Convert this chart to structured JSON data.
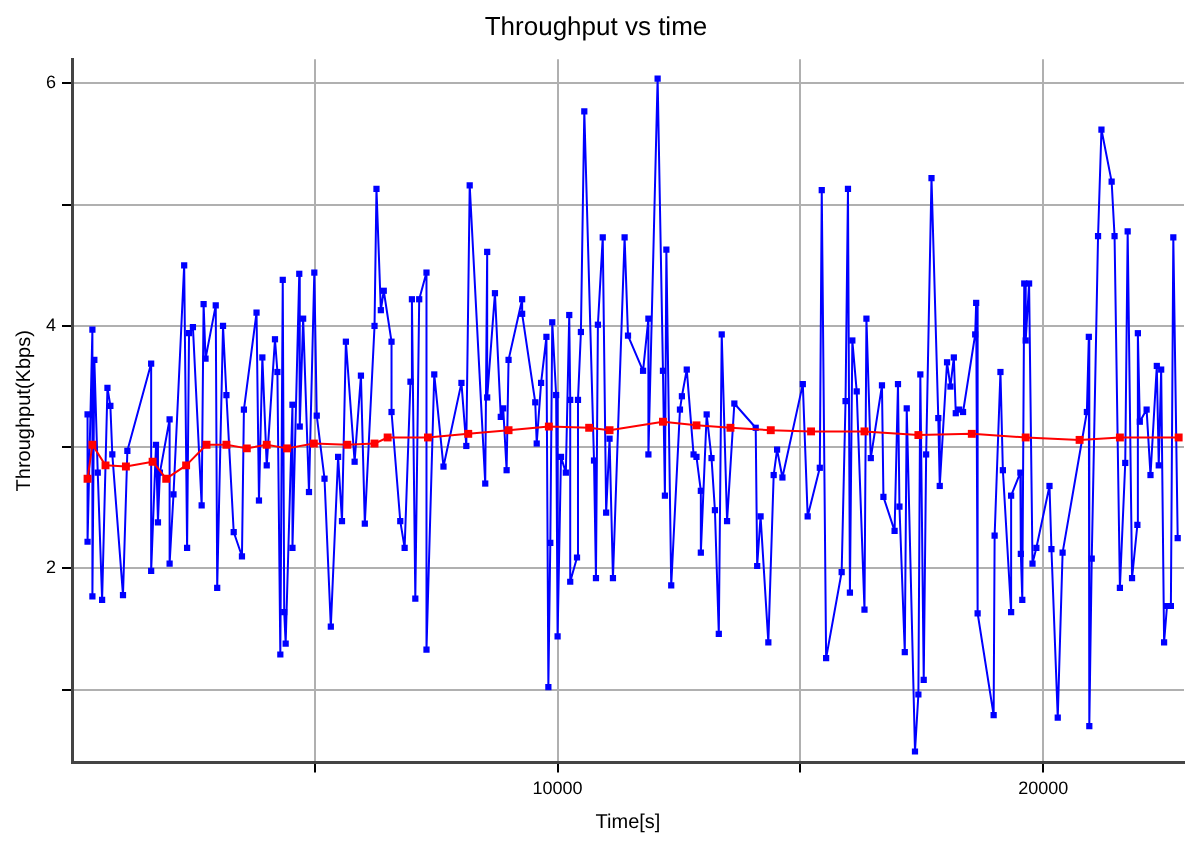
{
  "chart_data": {
    "type": "line",
    "title": "Throughput vs time",
    "xlabel": "Time[s]",
    "ylabel": "Throughput(Kbps)",
    "xlim": [
      0,
      22900
    ],
    "ylim": [
      0.4,
      6.2
    ],
    "xticks": [
      {
        "value": 5000,
        "label": null
      },
      10000,
      {
        "value": 15000,
        "label": null
      },
      20000
    ],
    "yticks": [
      {
        "value": 1,
        "label": null
      },
      2,
      {
        "value": 3,
        "label": null
      },
      4,
      {
        "value": 5,
        "label": null
      },
      6
    ],
    "grid": true,
    "legend": false,
    "marker": "square",
    "line_style": "solid",
    "series": [
      {
        "color": "#0000ff",
        "x": [
          320,
          320,
          420,
          420,
          460,
          530,
          620,
          730,
          790,
          830,
          1050,
          1140,
          1630,
          1630,
          1730,
          1770,
          1810,
          2010,
          2010,
          2090,
          2310,
          2370,
          2410,
          2490,
          2670,
          2710,
          2750,
          2960,
          2990,
          3110,
          3180,
          3330,
          3500,
          3540,
          3800,
          3850,
          3920,
          4010,
          4180,
          4230,
          4290,
          4340,
          4370,
          4400,
          4540,
          4540,
          4680,
          4690,
          4760,
          4880,
          4990,
          5040,
          5200,
          5330,
          5480,
          5560,
          5640,
          5820,
          5950,
          6030,
          6230,
          6270,
          6360,
          6420,
          6580,
          6580,
          6760,
          6850,
          6970,
          7000,
          7070,
          7150,
          7300,
          7300,
          7460,
          7650,
          8020,
          8120,
          8190,
          8510,
          8550,
          8550,
          8710,
          8830,
          8880,
          8950,
          8990,
          9270,
          9270,
          9540,
          9570,
          9660,
          9770,
          9810,
          9850,
          9890,
          9970,
          10000,
          10070,
          10170,
          10240,
          10260,
          10260,
          10400,
          10420,
          10480,
          10550,
          10750,
          10790,
          10830,
          10930,
          11000,
          11070,
          11140,
          11380,
          11450,
          11760,
          11870,
          11870,
          12060,
          12170,
          12210,
          12240,
          12340,
          12520,
          12560,
          12660,
          12800,
          12860,
          12950,
          12950,
          13070,
          13170,
          13240,
          13320,
          13380,
          13490,
          13640,
          14080,
          14110,
          14180,
          14340,
          14450,
          14520,
          14630,
          15050,
          15150,
          15400,
          15440,
          15530,
          15850,
          15930,
          15980,
          16020,
          16070,
          16160,
          16320,
          16360,
          16450,
          16680,
          16710,
          16940,
          17010,
          17040,
          17150,
          17190,
          17360,
          17430,
          17470,
          17540,
          17590,
          17700,
          17840,
          17870,
          18020,
          18090,
          18160,
          18200,
          18270,
          18350,
          18600,
          18620,
          18650,
          18980,
          19000,
          19120,
          19170,
          19340,
          19340,
          19530,
          19540,
          19570,
          19610,
          19640,
          19710,
          19780,
          19860,
          20130,
          20170,
          20300,
          20400,
          20900,
          20940,
          20950,
          21000,
          21130,
          21200,
          21410,
          21470,
          21580,
          21690,
          21740,
          21830,
          21940,
          21950,
          21990,
          22130,
          22210,
          22340,
          22380,
          22430,
          22490,
          22550,
          22630,
          22680,
          22770
        ],
        "values": [
          3.27,
          2.22,
          3.97,
          1.77,
          3.72,
          2.79,
          1.74,
          3.49,
          3.34,
          2.94,
          1.78,
          2.97,
          3.69,
          1.98,
          3.02,
          2.38,
          2.79,
          3.23,
          2.04,
          2.61,
          4.5,
          2.17,
          3.94,
          3.99,
          2.52,
          4.18,
          3.73,
          4.17,
          1.84,
          4.0,
          3.43,
          2.3,
          2.1,
          3.31,
          4.11,
          2.56,
          3.74,
          2.85,
          3.89,
          3.62,
          1.29,
          4.38,
          1.64,
          1.38,
          3.35,
          2.17,
          4.43,
          3.17,
          4.06,
          2.63,
          4.44,
          3.26,
          2.74,
          1.52,
          2.92,
          2.39,
          3.87,
          2.88,
          3.59,
          2.37,
          4.0,
          5.13,
          4.13,
          4.29,
          3.87,
          3.29,
          2.39,
          2.17,
          3.54,
          4.22,
          1.75,
          4.22,
          4.44,
          1.33,
          3.6,
          2.84,
          3.53,
          3.01,
          5.16,
          2.7,
          4.61,
          3.41,
          4.27,
          3.25,
          3.32,
          2.81,
          3.72,
          4.22,
          4.1,
          3.37,
          3.03,
          3.53,
          3.91,
          1.02,
          2.21,
          4.03,
          3.43,
          1.44,
          2.92,
          2.79,
          4.09,
          3.39,
          1.89,
          2.09,
          3.39,
          3.95,
          5.77,
          2.89,
          1.92,
          4.01,
          4.73,
          2.46,
          3.07,
          1.92,
          4.73,
          3.92,
          3.63,
          4.06,
          2.94,
          6.04,
          3.63,
          2.6,
          4.63,
          1.86,
          3.31,
          3.42,
          3.64,
          2.94,
          2.92,
          2.64,
          2.13,
          3.27,
          2.91,
          2.48,
          1.46,
          3.93,
          2.39,
          3.36,
          3.16,
          2.02,
          2.43,
          1.39,
          2.77,
          2.98,
          2.75,
          3.52,
          2.43,
          2.83,
          5.12,
          1.26,
          1.97,
          3.38,
          5.13,
          1.8,
          3.88,
          3.46,
          1.66,
          4.06,
          2.91,
          3.51,
          2.59,
          2.31,
          3.52,
          2.51,
          1.31,
          3.32,
          0.49,
          0.96,
          3.6,
          1.08,
          2.94,
          5.22,
          3.24,
          2.68,
          3.7,
          3.5,
          3.74,
          3.28,
          3.31,
          3.29,
          3.93,
          4.19,
          1.63,
          0.79,
          2.27,
          3.62,
          2.81,
          1.64,
          2.6,
          2.79,
          2.12,
          1.74,
          4.35,
          3.88,
          4.35,
          2.04,
          2.17,
          2.68,
          2.16,
          0.77,
          2.13,
          3.29,
          3.91,
          0.7,
          2.08,
          4.74,
          5.62,
          5.19,
          4.74,
          1.84,
          2.87,
          4.78,
          1.92,
          2.36,
          3.94,
          3.21,
          3.31,
          2.77,
          3.67,
          2.85,
          3.64,
          1.39,
          1.69,
          1.69,
          4.73,
          2.25
        ]
      },
      {
        "color": "#ff0000",
        "x": [
          320,
          420,
          690,
          1110,
          1660,
          1940,
          2350,
          2770,
          3180,
          3600,
          4010,
          4430,
          4980,
          5670,
          6230,
          6500,
          7330,
          8160,
          8990,
          9820,
          10650,
          11070,
          12170,
          12860,
          13560,
          14390,
          15220,
          16320,
          17430,
          18530,
          19640,
          20750,
          21580,
          22790
        ],
        "values": [
          2.74,
          3.02,
          2.85,
          2.84,
          2.88,
          2.74,
          2.85,
          3.02,
          3.02,
          2.99,
          3.02,
          2.99,
          3.03,
          3.02,
          3.03,
          3.08,
          3.08,
          3.11,
          3.14,
          3.17,
          3.16,
          3.14,
          3.21,
          3.18,
          3.16,
          3.14,
          3.13,
          3.13,
          3.1,
          3.11,
          3.08,
          3.06,
          3.08,
          3.08
        ]
      }
    ]
  }
}
